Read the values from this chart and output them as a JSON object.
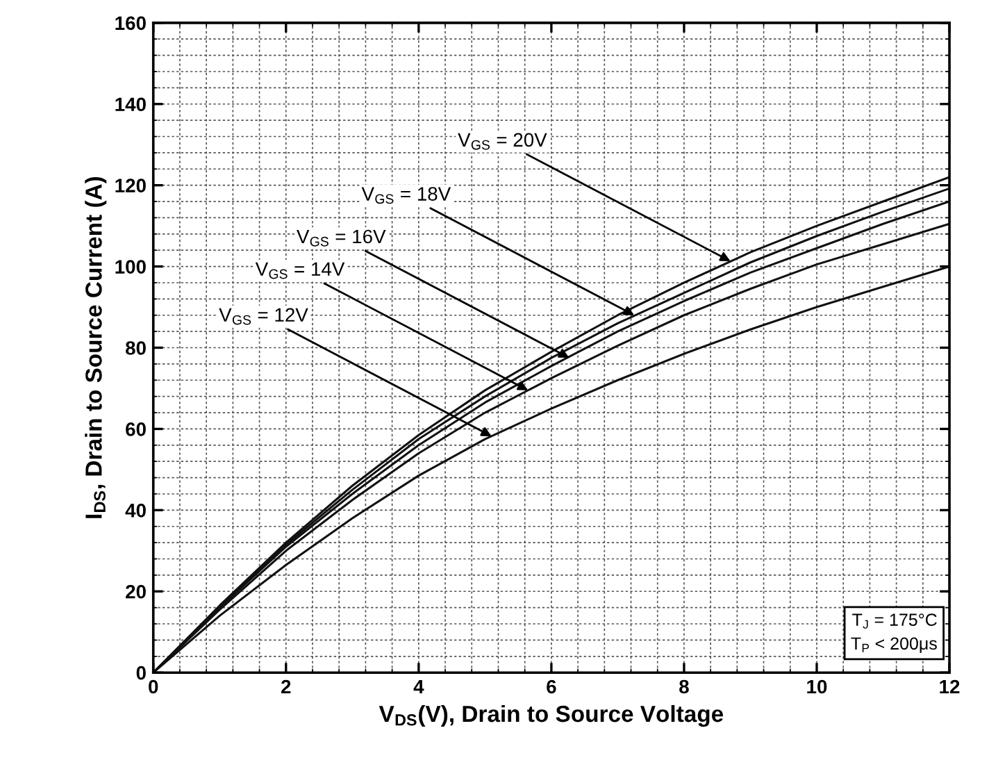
{
  "chart_data": {
    "type": "line",
    "xlabel": "V$_{DS}$(V), Drain to Source Voltage",
    "ylabel": "I$_{DS}$, Drain to Source Current (A)",
    "x": [
      0,
      1,
      2,
      3,
      4,
      5,
      6,
      7,
      8,
      9,
      10,
      11,
      12
    ],
    "series": [
      {
        "color": "#111111",
        "values": [
          0,
          16.5,
          32,
          46,
          58.5,
          69.5,
          79,
          88,
          96,
          103.5,
          110,
          116,
          122
        ]
      },
      {
        "color": "#111111",
        "values": [
          0,
          16.3,
          31.5,
          45,
          57.5,
          68,
          77.5,
          86,
          93.5,
          101,
          107.5,
          113.5,
          119.2
        ]
      },
      {
        "color": "#111111",
        "values": [
          0,
          16,
          31,
          44,
          56,
          66.5,
          75.5,
          84,
          91.5,
          98.5,
          104.5,
          110.5,
          116
        ]
      },
      {
        "color": "#111111",
        "values": [
          0,
          15.5,
          30,
          42.5,
          54,
          64,
          72.5,
          80.5,
          88,
          94.5,
          100.5,
          105.5,
          110.5
        ]
      },
      {
        "color": "#111111",
        "values": [
          0,
          14,
          26.5,
          38,
          48.5,
          57.5,
          65,
          72,
          78.5,
          84.5,
          90,
          95,
          100
        ]
      }
    ],
    "annotations": [
      {
        "text": "V$_{GS}$ = 20V",
        "x": 8.7,
        "y": 101.3
      },
      {
        "text": "V$_{GS}$ = 18V",
        "x": 7.25,
        "y": 88
      },
      {
        "text": "V$_{GS}$ = 16V",
        "x": 6.27,
        "y": 77.5
      },
      {
        "text": "V$_{GS}$ = 14V",
        "x": 5.65,
        "y": 69.5
      },
      {
        "text": "V$_{GS}$ = 12V",
        "x": 5.1,
        "y": 58.2
      },
      "T$_{J}$ = 175°C\nT$_{P}$ < 200μs"
    ],
    "xlim": [
      0,
      12
    ],
    "ylim": [
      0,
      160
    ],
    "xticks": [
      0,
      2,
      4,
      6,
      8,
      10,
      12
    ],
    "yticks": [
      0,
      20,
      40,
      60,
      80,
      100,
      120,
      140,
      160
    ],
    "grid": true,
    "marker": "none",
    "line_style": "solid"
  }
}
